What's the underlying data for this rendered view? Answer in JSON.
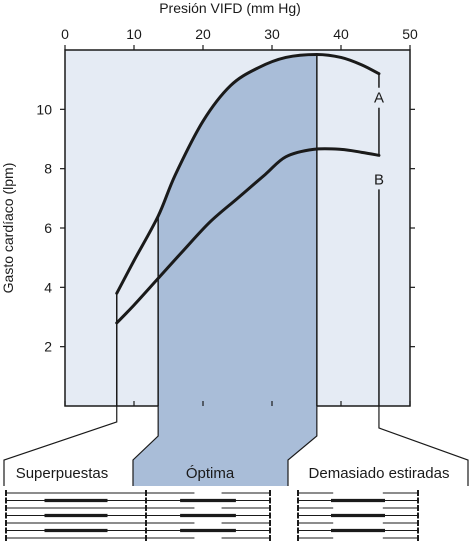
{
  "chart_data": {
    "type": "line",
    "title": "",
    "xlabel": "Presión VIFD (mm Hg)",
    "ylabel": "Gasto cardíaco (lpm)",
    "xlim": [
      0,
      50
    ],
    "ylim": [
      0,
      12
    ],
    "xticks": [
      0,
      10,
      20,
      30,
      40,
      50
    ],
    "yticks": [
      2,
      4,
      6,
      8,
      10
    ],
    "x_axis_position": "top",
    "grid": false,
    "series": [
      {
        "name": "A",
        "x": [
          7.5,
          10,
          13.5,
          16,
          20,
          24,
          28,
          32,
          36.5,
          40,
          43,
          45.5
        ],
        "y": [
          3.8,
          4.9,
          6.4,
          7.8,
          9.6,
          10.8,
          11.4,
          11.75,
          11.85,
          11.75,
          11.5,
          11.2
        ]
      },
      {
        "name": "B",
        "x": [
          7.5,
          10,
          13.5,
          17,
          21,
          25,
          29,
          32,
          36,
          40,
          43,
          45.5
        ],
        "y": [
          2.8,
          3.4,
          4.3,
          5.2,
          6.2,
          7.0,
          7.8,
          8.4,
          8.65,
          8.65,
          8.55,
          8.45
        ]
      }
    ],
    "regions": [
      {
        "label": "Superpuestas",
        "x_range": [
          7.5,
          13.5
        ]
      },
      {
        "label": "Óptima",
        "x_range": [
          13.5,
          36.5
        ]
      },
      {
        "label": "Demasiado estiradas",
        "x_range": [
          36.5,
          45.5
        ]
      }
    ]
  },
  "colors": {
    "plot_background": "#e5ebf4",
    "optimal_fill": "#a9bdd8",
    "line": "#1a1a1a"
  }
}
